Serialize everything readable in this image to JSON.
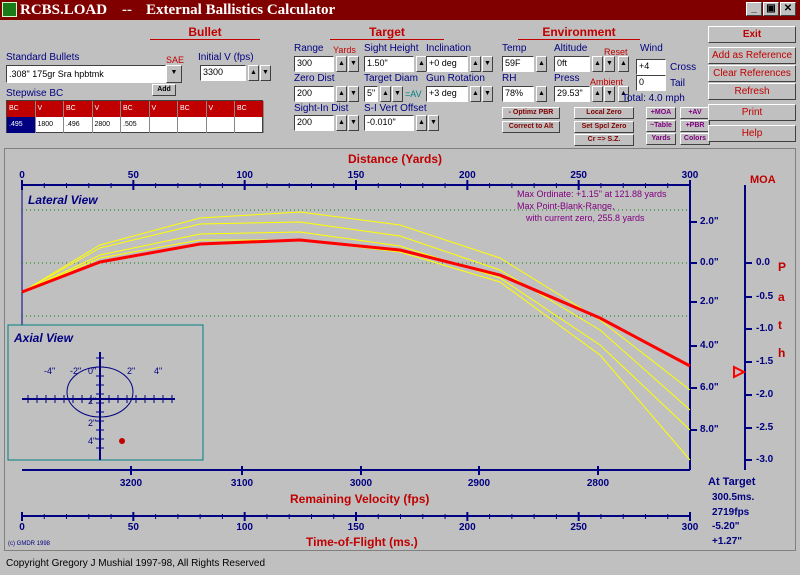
{
  "window": {
    "app_name": "RCBS.LOAD",
    "separator": "--",
    "subtitle": "External Ballistics Calculator"
  },
  "colors": {
    "title_bar": "#800000",
    "trajectory": "#ff0000",
    "alt_trajectories": "#ffff00",
    "axis": "#000080",
    "labels": "#c00000"
  },
  "bullet": {
    "header": "Bullet",
    "standard_label": "Standard Bullets",
    "sae_label": "SAE",
    "standard_value": ".308\"  175gr  Sra   hpbtmk",
    "add_label": "Add",
    "initial_v_label": "Initial V (fps)",
    "initial_v_value": "3300",
    "stepwise_label": "Stepwise BC",
    "bc_headers": [
      "BC",
      "V",
      "BC",
      "V",
      "BC",
      "V",
      "BC",
      "V",
      "BC"
    ],
    "bc_values": [
      ".495",
      "1800",
      ".496",
      "2800",
      ".505",
      "",
      "",
      "",
      ""
    ]
  },
  "target": {
    "header": "Target",
    "range_label": "Range",
    "yards_label": "Yards",
    "range_value": "300",
    "sight_height_label": "Sight Height",
    "sight_height_value": "1.50\"",
    "inclination_label": "Inclination",
    "inclination_value": "+0 deg",
    "zero_dist_label": "Zero Dist",
    "zero_dist_value": "200",
    "target_diam_label": "Target Diam",
    "target_diam_value": "5\"",
    "av_label": "=AV",
    "gun_rotation_label": "Gun Rotation",
    "gun_rotation_value": "+3 deg",
    "sight_in_label": "Sight-In Dist",
    "sight_in_value": "200",
    "si_vert_label": "S-I Vert Offset",
    "si_vert_value": "-0.010\""
  },
  "environment": {
    "header": "Environment",
    "temp_label": "Temp",
    "temp_value": "59F",
    "altitude_label": "Altitude",
    "altitude_value": "0ft",
    "reset_label": "Reset",
    "wind_label": "Wind",
    "wind_cross_value": "+4",
    "cross_label": "Cross",
    "rh_label": "RH",
    "rh_value": "78%",
    "press_label": "Press",
    "press_value": "29.53\"",
    "ambient_label": "Ambient",
    "wind_tail_value": "0",
    "tail_label": "Tail",
    "total_label": "Total:  4.0 mph"
  },
  "small_buttons": {
    "optimz_pbr": "- Optimz PBR",
    "correct_to_alt": "Correct to Alt",
    "local_zero": "Local Zero",
    "set_spcl_zero": "Set Spcl Zero",
    "cr_sz": "Cr => S.Z.",
    "moa": "+MOA",
    "av": "+AV",
    "table": "~Table",
    "pbr": "+PBR",
    "yards": "Yards",
    "colors": "Colors"
  },
  "side_buttons": {
    "exit": "Exit",
    "add_ref": "Add as Reference",
    "clear_ref": "Clear References",
    "refresh": "Refresh",
    "print": "Print",
    "help": "Help"
  },
  "plot": {
    "distance_title": "Distance  (Yards)",
    "distance_ticks": [
      "0",
      "50",
      "100",
      "150",
      "200",
      "250",
      "300"
    ],
    "lateral_title": "Lateral View",
    "annotation_1": "Max Ordinate: +1.15\" at 121.88 yards",
    "annotation_2": "Max Point-Blank-Range,",
    "annotation_3": "with current zero, 255.8 yards",
    "inch_ticks": [
      "2.0\"",
      "0.0\"",
      "2.0\"",
      "4.0\"",
      "6.0\"",
      "8.0\""
    ],
    "moa_title": "MOA",
    "moa_ticks": [
      "0.0",
      "-0.5",
      "-1.0",
      "-1.5",
      "-2.0",
      "-2.5",
      "-3.0"
    ],
    "path_letters": [
      "P",
      "a",
      "t",
      "h"
    ],
    "axial_title": "Axial View",
    "axial_labels": [
      "-4\"",
      "-2\"",
      "0\"",
      "2\"",
      "4\"",
      "2\"",
      "2\"",
      "4\""
    ],
    "velocity_title": "Remaining Velocity (fps)",
    "velocity_ticks": [
      "3200",
      "3100",
      "3000",
      "2900",
      "2800"
    ],
    "tof_title": "Time-of-Flight  (ms.)",
    "tof_ticks": [
      "0",
      "50",
      "100",
      "150",
      "200",
      "250",
      "300"
    ],
    "at_target_label": "At Target",
    "at_target_values": [
      "300.5ms.",
      "2719fps",
      "-5.20\"",
      "+1.27\""
    ],
    "credit": "(c) GMDR 1998"
  },
  "footer": "Copyright Gregory J Mushial 1997-98,  All Rights Reserved"
}
